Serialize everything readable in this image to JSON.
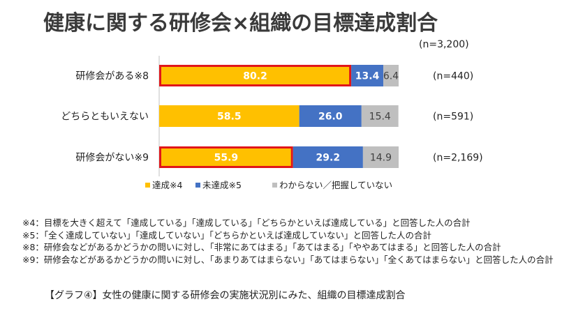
{
  "title": "健康に関する研修会×組織の目標達成割合",
  "total_n": "(n=3,200)",
  "chart_data": {
    "type": "bar",
    "orientation": "horizontal",
    "stacked": true,
    "categories": [
      "研修会がある※8",
      "どちらともいえない",
      "研修会がない※9"
    ],
    "n_labels": [
      "(n=440)",
      "(n=591)",
      "(n=2,169)"
    ],
    "series": [
      {
        "name": "達成※4",
        "values": [
          80.2,
          58.5,
          55.9
        ],
        "color": "#FFC000"
      },
      {
        "name": "未達成※5",
        "values": [
          13.4,
          26.0,
          29.2
        ],
        "color": "#4472C4"
      },
      {
        "name": "わからない／把握していない",
        "values": [
          6.4,
          15.4,
          14.9
        ],
        "color": "#BFBFBF"
      }
    ],
    "highlighted": [
      {
        "series": 0,
        "category": 0
      },
      {
        "series": 0,
        "category": 2
      }
    ],
    "highlight_color": "#E0161A",
    "xlim": [
      0,
      100
    ],
    "legend_position": "bottom"
  },
  "notes": [
    "※4：目標を大きく超えて「達成している」「達成している」「どちらかといえば達成している」と回答した人の合計",
    "※5：「全く達成していない」「達成していない」「どちらかといえば達成していない」と回答した人の合計",
    "※8：研修会などがあるかどうかの問いに対し、「非常にあてはまる」「あてはまる」「ややあてはまる」と回答した人の合計",
    "※9：研修会などがあるかどうかの問いに対し、「あまりあてはまらない」「あてはまらない」「全くあてはまらない」と回答した人の合計"
  ],
  "caption": "【グラフ④】女性の健康に関する研修会の実施状況別にみた、組織の目標達成割合"
}
